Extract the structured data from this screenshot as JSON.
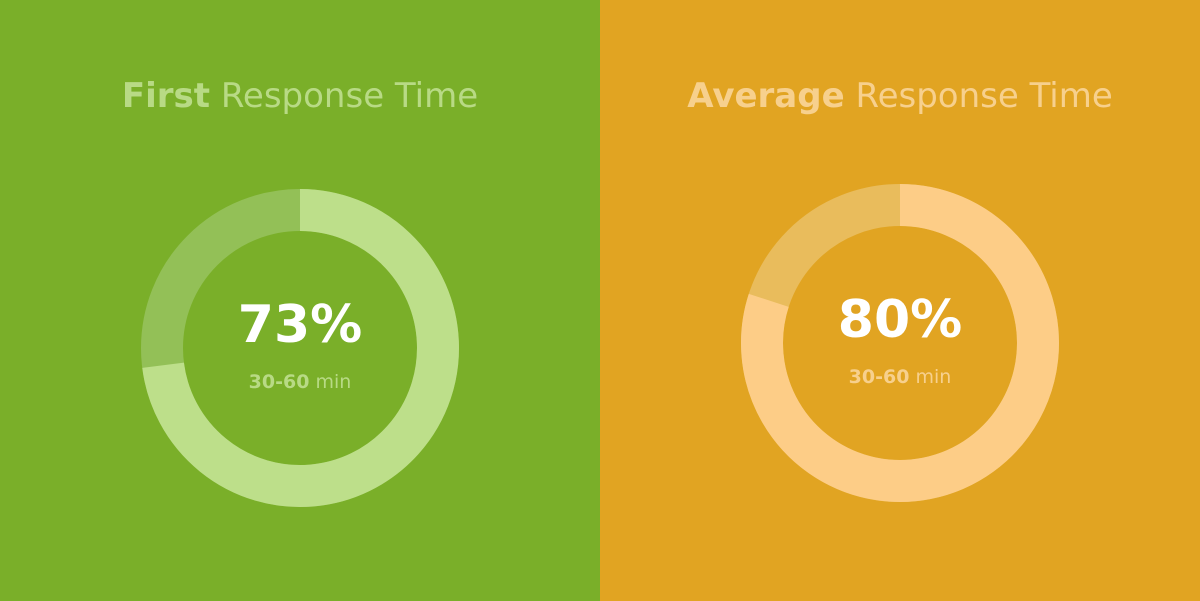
{
  "chart_data": [
    {
      "type": "donut",
      "title_bold": "First",
      "title": "Response Time",
      "values": [
        73
      ],
      "value_labels": [
        "73%"
      ],
      "subtitle_bold": "30-60",
      "subtitle": "min",
      "background": "#7aaf29",
      "track_color": "#93c057",
      "color": "#bddf8a",
      "text_color": "#b8da85"
    },
    {
      "type": "donut",
      "title_bold": "Average",
      "title": "Response Time",
      "values": [
        80
      ],
      "value_labels": [
        "80%"
      ],
      "subtitle_bold": "30-60",
      "subtitle": "min",
      "background": "#e1a422",
      "track_color": "#e9bc5c",
      "color": "#fdcd87",
      "text_color": "#f7d08d"
    }
  ]
}
